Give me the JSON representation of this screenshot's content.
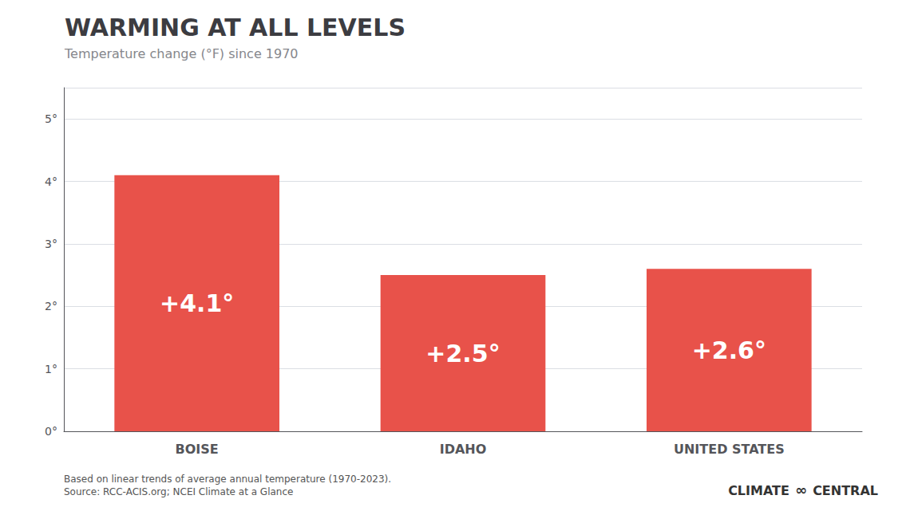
{
  "chart_data": {
    "type": "bar",
    "title": "WARMING AT ALL LEVELS",
    "subtitle": "Temperature change (°F) since 1970",
    "categories": [
      "BOISE",
      "IDAHO",
      "UNITED STATES"
    ],
    "values": [
      4.1,
      2.5,
      2.6
    ],
    "value_labels": [
      "+4.1°",
      "+2.5°",
      "+2.6°"
    ],
    "data_labels": true,
    "color": "#E8524A",
    "ylim": [
      0,
      5.5
    ],
    "yticks": [
      {
        "value": 0,
        "label": "0°"
      },
      {
        "value": 1,
        "label": "1°"
      },
      {
        "value": 2,
        "label": "2°"
      },
      {
        "value": 3,
        "label": "3°"
      },
      {
        "value": 4,
        "label": "4°"
      },
      {
        "value": 5,
        "label": "5°"
      }
    ],
    "grid": true,
    "annotations": [
      "Based on linear trends of average annual temperature (1970-2023).\nSource: RCC-ACIS.org; NCEI Climate at a Glance",
      "CLIMATE",
      "∞",
      "CENTRAL"
    ]
  }
}
